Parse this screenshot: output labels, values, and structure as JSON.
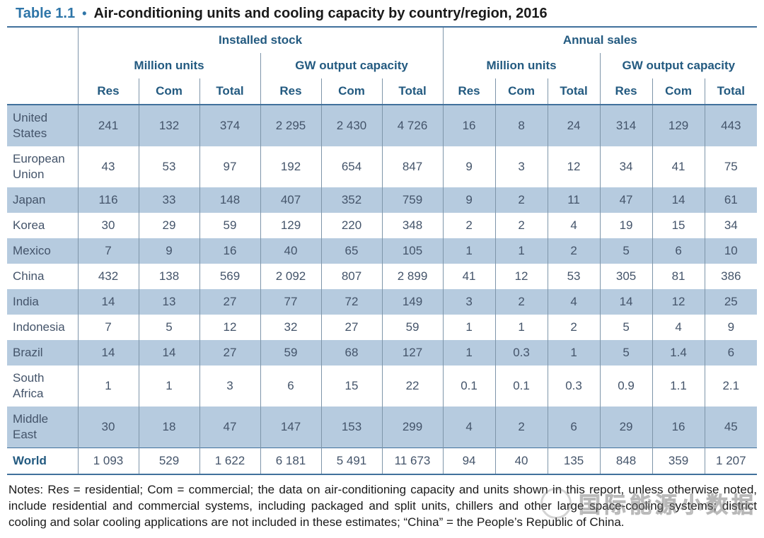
{
  "title": {
    "label": "Table 1.1",
    "bullet": "•",
    "text": "Air-conditioning units and cooling capacity by country/region, 2016"
  },
  "table": {
    "group_headers": [
      "Installed stock",
      "Annual sales"
    ],
    "subgroup_headers": [
      "Million units",
      "GW output capacity",
      "Million units",
      "GW output capacity"
    ],
    "col_headers": [
      "Res",
      "Com",
      "Total"
    ],
    "rows": [
      {
        "region": "United States",
        "shaded": true,
        "values": [
          "241",
          "132",
          "374",
          "2 295",
          "2 430",
          "4 726",
          "16",
          "8",
          "24",
          "314",
          "129",
          "443"
        ]
      },
      {
        "region": "European Union",
        "shaded": false,
        "values": [
          "43",
          "53",
          "97",
          "192",
          "654",
          "847",
          "9",
          "3",
          "12",
          "34",
          "41",
          "75"
        ]
      },
      {
        "region": "Japan",
        "shaded": true,
        "values": [
          "116",
          "33",
          "148",
          "407",
          "352",
          "759",
          "9",
          "2",
          "11",
          "47",
          "14",
          "61"
        ]
      },
      {
        "region": "Korea",
        "shaded": false,
        "values": [
          "30",
          "29",
          "59",
          "129",
          "220",
          "348",
          "2",
          "2",
          "4",
          "19",
          "15",
          "34"
        ]
      },
      {
        "region": "Mexico",
        "shaded": true,
        "values": [
          "7",
          "9",
          "16",
          "40",
          "65",
          "105",
          "1",
          "1",
          "2",
          "5",
          "6",
          "10"
        ]
      },
      {
        "region": "China",
        "shaded": false,
        "values": [
          "432",
          "138",
          "569",
          "2 092",
          "807",
          "2 899",
          "41",
          "12",
          "53",
          "305",
          "81",
          "386"
        ]
      },
      {
        "region": "India",
        "shaded": true,
        "values": [
          "14",
          "13",
          "27",
          "77",
          "72",
          "149",
          "3",
          "2",
          "4",
          "14",
          "12",
          "25"
        ]
      },
      {
        "region": "Indonesia",
        "shaded": false,
        "values": [
          "7",
          "5",
          "12",
          "32",
          "27",
          "59",
          "1",
          "1",
          "2",
          "5",
          "4",
          "9"
        ]
      },
      {
        "region": "Brazil",
        "shaded": true,
        "values": [
          "14",
          "14",
          "27",
          "59",
          "68",
          "127",
          "1",
          "0.3",
          "1",
          "5",
          "1.4",
          "6"
        ]
      },
      {
        "region": "South Africa",
        "shaded": false,
        "values": [
          "1",
          "1",
          "3",
          "6",
          "15",
          "22",
          "0.1",
          "0.1",
          "0.3",
          "0.9",
          "1.1",
          "2.1"
        ]
      },
      {
        "region": "Middle East",
        "shaded": true,
        "values": [
          "30",
          "18",
          "47",
          "147",
          "153",
          "299",
          "4",
          "2",
          "6",
          "29",
          "16",
          "45"
        ]
      },
      {
        "region": "World",
        "shaded": false,
        "total": true,
        "values": [
          "1 093",
          "529",
          "1 622",
          "6 181",
          "5 491",
          "11 673",
          "94",
          "40",
          "135",
          "848",
          "359",
          "1 207"
        ]
      }
    ]
  },
  "notes": "Notes: Res = residential; Com = commercial; the data on air-conditioning capacity and units shown in this report, unless otherwise noted, include residential and commercial systems, including packaged and split units, chillers and other large space-cooling systems; district cooling and solar cooling applications are not included in these estimates; “China” = the People’s Republic of China.",
  "watermark_text": "国际能源小数据",
  "colors": {
    "accent_blue": "#2e75a8",
    "header_text": "#235a80",
    "body_text": "#44546a",
    "row_shade": "#b6cbdf",
    "rule_blue": "#41719c",
    "grid_line": "#7e95a9",
    "note_text": "#1a1a1a"
  }
}
